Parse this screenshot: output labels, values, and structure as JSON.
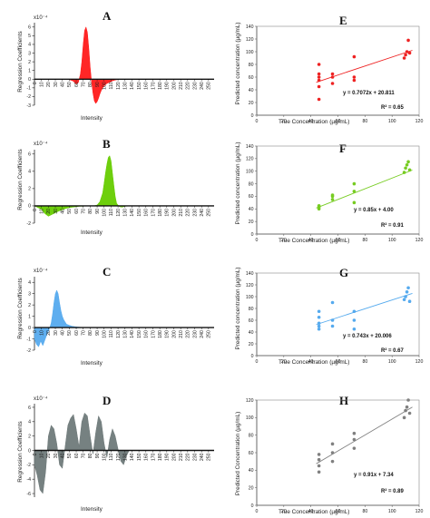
{
  "figure": {
    "left_panels": [
      {
        "letter": "A",
        "ylabel": "Regression Coefficients",
        "xlabel": "Intensity",
        "multiplier": "x10⁻⁴",
        "color": "#ff1a1a"
      },
      {
        "letter": "B",
        "ylabel": "Regression Coefficients",
        "xlabel": "Intensity",
        "multiplier": "x10⁻⁴",
        "color": "#66cc00"
      },
      {
        "letter": "C",
        "ylabel": "Regression Coefficients",
        "xlabel": "Intensity",
        "multiplier": "x10⁻⁴",
        "color": "#55aaee"
      },
      {
        "letter": "D",
        "ylabel": "Regression Coefficients",
        "xlabel": "Intensity",
        "multiplier": "x10⁻⁴",
        "color": "#6f7a7a"
      }
    ],
    "right_panels": [
      {
        "letter": "E",
        "ylabel": "Predicted concentration (µg/mL)",
        "xlabel": "True Concentration (µg/mL)",
        "equation": "y = 0.7072x + 20.811",
        "r2": "R² = 0.65",
        "color": "#ee2222"
      },
      {
        "letter": "F",
        "ylabel": "Predicted concentration (µg/mL)",
        "xlabel": "True Concentration (µg/mL)",
        "equation": "y = 0.85x + 4.00",
        "r2": "R² = 0.91",
        "color": "#77cc22"
      },
      {
        "letter": "G",
        "ylabel": "Predicted concentration (µg/mL)",
        "xlabel": "True Concentration (µg/mL)",
        "equation": "y = 0.743x + 20.006",
        "r2": "R² = 0.67",
        "color": "#55aaee"
      },
      {
        "letter": "H",
        "ylabel": "Predicted Concentration (µg/mL)",
        "xlabel": "True Concentration (µg/mL)",
        "equation": "y = 0.91x + 7.34",
        "r2": "R² = 0.89",
        "color": "#808080"
      }
    ]
  },
  "chart_data": [
    {
      "id": "A",
      "type": "area",
      "xlabel": "Intensity",
      "ylabel": "Regression Coefficients",
      "x_ticks": [
        0,
        10,
        20,
        30,
        40,
        50,
        60,
        70,
        80,
        90,
        100,
        110,
        120,
        130,
        140,
        150,
        160,
        170,
        180,
        190,
        200,
        210,
        220,
        230,
        240,
        250
      ],
      "y_ticks": [
        -3,
        -2,
        -1,
        0,
        1,
        2,
        3,
        4,
        5,
        6
      ],
      "ylim": [
        -3,
        6.5
      ],
      "xlim": [
        0,
        258
      ],
      "y_multiplier": "x10⁻⁴",
      "x": [
        0,
        40,
        50,
        55,
        60,
        63,
        66,
        68,
        70,
        72,
        74,
        76,
        78,
        80,
        82,
        84,
        86,
        88,
        90,
        92,
        94,
        96,
        98,
        100,
        104,
        108,
        112,
        116,
        120,
        130,
        140,
        258
      ],
      "y": [
        0,
        0,
        -0.05,
        -0.2,
        -0.55,
        -0.4,
        0.6,
        2.0,
        4.0,
        5.6,
        6.0,
        5.4,
        3.6,
        1.4,
        -0.3,
        -1.6,
        -2.5,
        -2.8,
        -2.6,
        -2.2,
        -1.7,
        -1.3,
        -1.0,
        -0.8,
        -0.5,
        -0.35,
        -0.2,
        -0.1,
        -0.05,
        0,
        0,
        0
      ]
    },
    {
      "id": "B",
      "type": "area",
      "xlabel": "Intensity",
      "ylabel": "Regression Coefficients",
      "x_ticks": [
        0,
        10,
        20,
        30,
        40,
        50,
        60,
        70,
        80,
        90,
        100,
        110,
        120,
        130,
        140,
        150,
        160,
        170,
        180,
        190,
        200,
        210,
        220,
        230,
        240,
        250
      ],
      "y_ticks": [
        -2,
        0,
        2,
        4,
        6
      ],
      "ylim": [
        -2,
        6.5
      ],
      "xlim": [
        0,
        258
      ],
      "y_multiplier": "x10⁻⁴",
      "x": [
        0,
        10,
        15,
        20,
        25,
        30,
        35,
        40,
        45,
        50,
        55,
        60,
        65,
        70,
        75,
        80,
        85,
        90,
        94,
        98,
        100,
        102,
        104,
        106,
        108,
        110,
        112,
        114,
        116,
        118,
        122,
        126,
        130,
        140,
        258
      ],
      "y": [
        0,
        -0.4,
        -0.9,
        -1.2,
        -1.0,
        -0.8,
        -0.6,
        -0.45,
        -0.3,
        -0.2,
        -0.15,
        -0.1,
        -0.05,
        -0.05,
        0,
        0,
        0,
        0.1,
        0.5,
        1.5,
        2.6,
        3.8,
        4.8,
        5.6,
        5.8,
        5.2,
        3.8,
        2.4,
        1.1,
        0.3,
        -0.1,
        -0.15,
        -0.05,
        0,
        0
      ]
    },
    {
      "id": "C",
      "type": "area",
      "xlabel": "Intensity",
      "ylabel": "Regression Coefficients",
      "x_ticks": [
        0,
        10,
        20,
        30,
        40,
        50,
        60,
        70,
        80,
        90,
        100,
        110,
        120,
        130,
        140,
        150,
        160,
        170,
        180,
        190,
        200,
        210,
        220,
        230,
        240,
        250
      ],
      "y_ticks": [
        -2,
        -1,
        0,
        1,
        2,
        3,
        4
      ],
      "ylim": [
        -2,
        4.5
      ],
      "xlim": [
        0,
        258
      ],
      "y_multiplier": "x10⁻⁴",
      "x": [
        0,
        3,
        6,
        9,
        12,
        15,
        18,
        21,
        24,
        26,
        28,
        30,
        32,
        34,
        36,
        38,
        40,
        42,
        44,
        46,
        48,
        50,
        54,
        58,
        62,
        66,
        70,
        80,
        258
      ],
      "y": [
        -1.0,
        -1.5,
        -1.7,
        -1.2,
        -1.6,
        -1.1,
        -0.6,
        -0.2,
        0.4,
        1.2,
        2.2,
        3.0,
        3.3,
        3.0,
        2.2,
        1.5,
        1.0,
        0.7,
        0.5,
        0.3,
        0.25,
        0.2,
        0.12,
        0.08,
        0.05,
        0.03,
        0.01,
        0,
        0
      ]
    },
    {
      "id": "D",
      "type": "area",
      "xlabel": "Intensity",
      "ylabel": "Regression Coefficients",
      "x_ticks": [
        0,
        10,
        20,
        30,
        40,
        50,
        60,
        70,
        80,
        90,
        100,
        110,
        120,
        130,
        140,
        150,
        160,
        170,
        180,
        190,
        200,
        210,
        220,
        230,
        240,
        250
      ],
      "y_ticks": [
        -6,
        -4,
        -2,
        0,
        2,
        4,
        6
      ],
      "ylim": [
        -6.5,
        6.5
      ],
      "xlim": [
        0,
        258
      ],
      "y_multiplier": "x10⁻⁴",
      "x": [
        0,
        4,
        8,
        12,
        16,
        20,
        24,
        28,
        32,
        36,
        40,
        44,
        48,
        52,
        56,
        60,
        64,
        68,
        72,
        76,
        80,
        84,
        88,
        92,
        96,
        100,
        104,
        108,
        112,
        116,
        120,
        124,
        128,
        132,
        136,
        140,
        258
      ],
      "y": [
        -2.0,
        -3.5,
        -5.5,
        -6.0,
        -3.0,
        2.0,
        3.5,
        3.0,
        1.0,
        -2.0,
        -2.5,
        0.5,
        3.5,
        4.5,
        5.0,
        3.0,
        0.5,
        4.0,
        5.2,
        4.8,
        2.0,
        -0.5,
        2.5,
        4.8,
        4.0,
        1.0,
        -1.0,
        1.5,
        3.0,
        2.0,
        0.2,
        -1.5,
        -2.0,
        -0.8,
        0,
        0,
        0
      ]
    },
    {
      "id": "E",
      "type": "scatter",
      "xlabel": "True Concentration (µg/mL)",
      "ylabel": "Predicted concentration (µg/mL)",
      "xlim": [
        0,
        120
      ],
      "ylim": [
        0,
        140
      ],
      "x_ticks": [
        0,
        20,
        40,
        60,
        80,
        100,
        120
      ],
      "y_ticks": [
        0,
        20,
        40,
        60,
        80,
        100,
        120,
        140
      ],
      "trendline": {
        "slope": 0.7072,
        "intercept": 20.811
      },
      "points": [
        [
          46,
          25
        ],
        [
          46,
          45
        ],
        [
          46,
          55
        ],
        [
          46,
          60
        ],
        [
          46,
          65
        ],
        [
          46,
          80
        ],
        [
          56,
          50
        ],
        [
          56,
          60
        ],
        [
          56,
          65
        ],
        [
          72,
          55
        ],
        [
          72,
          60
        ],
        [
          72,
          92
        ],
        [
          109,
          90
        ],
        [
          110,
          95
        ],
        [
          111,
          100
        ],
        [
          112,
          118
        ],
        [
          113,
          98
        ]
      ]
    },
    {
      "id": "F",
      "type": "scatter",
      "xlabel": "True Concentration (µg/mL)",
      "ylabel": "Predicted concentration (µg/mL)",
      "xlim": [
        0,
        120
      ],
      "ylim": [
        0,
        140
      ],
      "x_ticks": [
        0,
        20,
        40,
        60,
        80,
        100,
        120
      ],
      "y_ticks": [
        0,
        20,
        40,
        60,
        80,
        100,
        120,
        140
      ],
      "trendline": {
        "slope": 0.85,
        "intercept": 4.0
      },
      "points": [
        [
          46,
          40
        ],
        [
          46,
          43
        ],
        [
          46,
          45
        ],
        [
          56,
          55
        ],
        [
          56,
          60
        ],
        [
          56,
          62
        ],
        [
          72,
          50
        ],
        [
          72,
          68
        ],
        [
          72,
          80
        ],
        [
          109,
          98
        ],
        [
          110,
          105
        ],
        [
          111,
          110
        ],
        [
          112,
          115
        ],
        [
          113,
          102
        ]
      ]
    },
    {
      "id": "G",
      "type": "scatter",
      "xlabel": "True Concentration (µg/mL)",
      "ylabel": "Predicted concentration (µg/mL)",
      "xlim": [
        0,
        120
      ],
      "ylim": [
        0,
        140
      ],
      "x_ticks": [
        0,
        20,
        40,
        60,
        80,
        100,
        120
      ],
      "y_ticks": [
        0,
        20,
        40,
        60,
        80,
        100,
        120,
        140
      ],
      "trendline": {
        "slope": 0.743,
        "intercept": 20.006
      },
      "points": [
        [
          46,
          45
        ],
        [
          46,
          50
        ],
        [
          46,
          55
        ],
        [
          46,
          65
        ],
        [
          46,
          75
        ],
        [
          56,
          50
        ],
        [
          56,
          60
        ],
        [
          56,
          90
        ],
        [
          72,
          45
        ],
        [
          72,
          60
        ],
        [
          72,
          75
        ],
        [
          109,
          95
        ],
        [
          110,
          100
        ],
        [
          111,
          108
        ],
        [
          112,
          115
        ],
        [
          113,
          92
        ]
      ]
    },
    {
      "id": "H",
      "type": "scatter",
      "xlabel": "True Concentration (µg/mL)",
      "ylabel": "Predicted Concentration (µg/mL)",
      "xlim": [
        0,
        120
      ],
      "ylim": [
        0,
        120
      ],
      "x_ticks": [
        0,
        20,
        40,
        60,
        80,
        100,
        120
      ],
      "y_ticks": [
        0,
        20,
        40,
        60,
        80,
        100,
        120
      ],
      "trendline": {
        "slope": 0.91,
        "intercept": 7.34
      },
      "points": [
        [
          46,
          38
        ],
        [
          46,
          45
        ],
        [
          46,
          52
        ],
        [
          46,
          58
        ],
        [
          56,
          50
        ],
        [
          56,
          60
        ],
        [
          56,
          70
        ],
        [
          72,
          65
        ],
        [
          72,
          75
        ],
        [
          72,
          82
        ],
        [
          109,
          100
        ],
        [
          110,
          108
        ],
        [
          111,
          112
        ],
        [
          112,
          120
        ],
        [
          113,
          105
        ]
      ]
    }
  ]
}
